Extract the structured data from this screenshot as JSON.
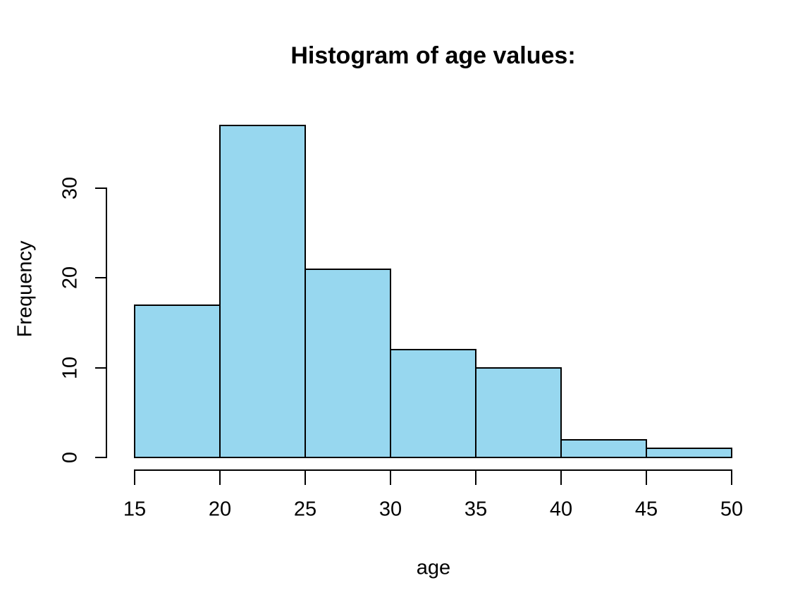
{
  "chart_data": {
    "type": "bar",
    "subtype": "histogram",
    "title": "Histogram of age values:",
    "xlabel": "age",
    "ylabel": "Frequency",
    "bin_edges": [
      15,
      20,
      25,
      30,
      35,
      40,
      45,
      50
    ],
    "frequencies": [
      17,
      37,
      21,
      12,
      10,
      2,
      1
    ],
    "x_ticks": [
      15,
      20,
      25,
      30,
      35,
      40,
      45,
      50
    ],
    "y_ticks": [
      0,
      10,
      20,
      30
    ],
    "xlim": [
      15,
      50
    ],
    "ylim": [
      0,
      37
    ],
    "grid": "off",
    "legend": "none",
    "bar_fill": "#97D7EF",
    "bar_border": "#000000",
    "axis_color": "#000000",
    "text_color": "#000000",
    "background": "#FFFFFF"
  }
}
